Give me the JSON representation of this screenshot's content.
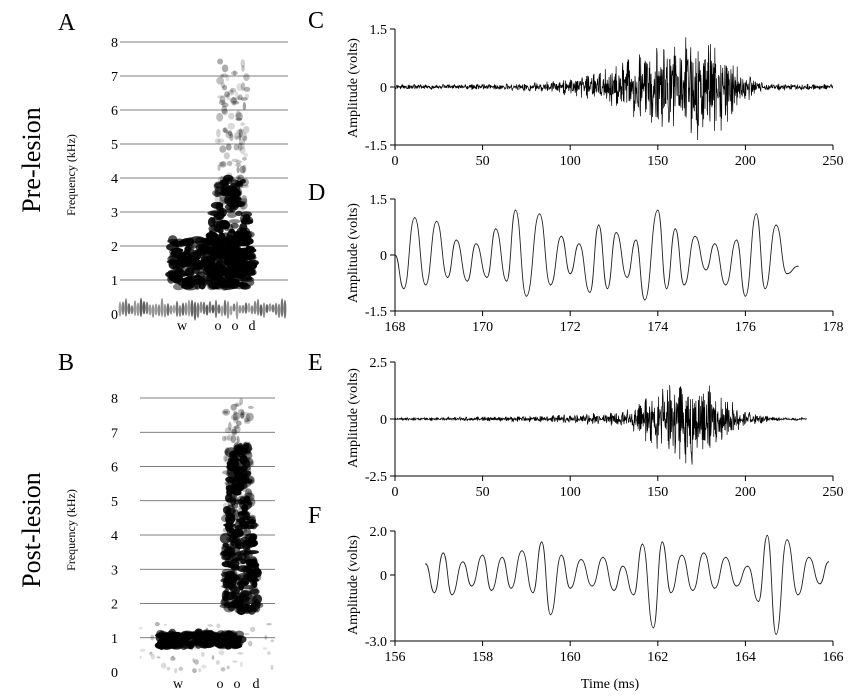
{
  "group_labels": {
    "pre": "Pre-lesion",
    "post": "Post-lesion"
  },
  "panel_letters": {
    "a": "A",
    "b": "B",
    "c": "C",
    "d": "D",
    "e": "E",
    "f": "F"
  },
  "colors": {
    "ink": "#000000",
    "gridline": "#555555",
    "waveform": "#222222"
  },
  "chart_data": [
    {
      "panel": "A",
      "type": "heatmap",
      "title": "",
      "ylabel": "Frequency (kHz)",
      "xlabel": "",
      "ylim": [
        0,
        8
      ],
      "y_ticks": [
        "0",
        "1",
        "2",
        "3",
        "4",
        "5",
        "6",
        "7",
        "8"
      ],
      "phoneme_labels": [
        "w",
        "o",
        "o",
        "d"
      ],
      "grid": "horizontal"
    },
    {
      "panel": "B",
      "type": "heatmap",
      "title": "",
      "ylabel": "Frequency (kHz)",
      "xlabel": "",
      "ylim": [
        0,
        8
      ],
      "y_ticks": [
        "0",
        "1",
        "2",
        "3",
        "4",
        "5",
        "6",
        "7",
        "8"
      ],
      "phoneme_labels": [
        "w",
        "o",
        "o",
        "d"
      ],
      "grid": "horizontal"
    },
    {
      "panel": "C",
      "type": "line",
      "ylabel": "Amplitude (volts)",
      "xlabel": "",
      "xlim": [
        0,
        250
      ],
      "ylim": [
        -1.5,
        1.5
      ],
      "x_ticks": [
        0,
        50,
        100,
        150,
        200,
        250
      ],
      "y_ticks": [
        "1.5",
        "0",
        "-1.5"
      ],
      "envelope_x": [
        0,
        60,
        90,
        110,
        125,
        140,
        150,
        160,
        170,
        180,
        190,
        200,
        210,
        250
      ],
      "envelope_y": [
        0.07,
        0.08,
        0.15,
        0.35,
        0.6,
        0.9,
        1.15,
        1.3,
        1.4,
        1.35,
        1.0,
        0.45,
        0.1,
        0.07
      ]
    },
    {
      "panel": "D",
      "type": "line",
      "ylabel": "Amplitude (volts)",
      "xlabel": "",
      "xlim": [
        168,
        178
      ],
      "ylim": [
        -1.5,
        1.5
      ],
      "x_ticks": [
        168,
        170,
        172,
        174,
        176,
        178
      ],
      "y_ticks": [
        "1.5",
        "0",
        "-1.5"
      ],
      "x": [
        168.0,
        168.2,
        168.45,
        168.7,
        168.95,
        169.2,
        169.4,
        169.65,
        169.85,
        170.1,
        170.3,
        170.55,
        170.75,
        171.0,
        171.3,
        171.55,
        171.8,
        172.0,
        172.2,
        172.45,
        172.65,
        172.85,
        173.05,
        173.3,
        173.5,
        173.7,
        174.0,
        174.2,
        174.4,
        174.6,
        174.85,
        175.1,
        175.3,
        175.55,
        175.8,
        176.0,
        176.25,
        176.45,
        176.7,
        176.95,
        177.2
      ],
      "y": [
        0.0,
        -0.9,
        1.0,
        -0.8,
        0.9,
        -0.6,
        0.4,
        -0.7,
        0.3,
        -0.6,
        0.7,
        -0.7,
        1.2,
        -1.1,
        1.1,
        -0.8,
        0.5,
        -0.5,
        0.3,
        -1.0,
        0.8,
        -0.9,
        0.6,
        -0.6,
        0.4,
        -1.2,
        1.2,
        -0.9,
        0.7,
        -0.8,
        0.5,
        -0.4,
        0.3,
        -0.8,
        0.4,
        -1.1,
        1.1,
        -0.9,
        0.8,
        -0.5,
        -0.3
      ]
    },
    {
      "panel": "E",
      "type": "line",
      "ylabel": "Amplitude (volts)",
      "xlabel": "",
      "xlim": [
        0,
        250
      ],
      "ylim": [
        -2.5,
        2.5
      ],
      "x_ticks": [
        0,
        50,
        100,
        150,
        200,
        250
      ],
      "y_ticks": [
        "2.5",
        "0",
        "-2.5"
      ],
      "envelope_x": [
        0,
        60,
        100,
        130,
        140,
        150,
        160,
        170,
        180,
        190,
        200,
        215,
        235
      ],
      "envelope_y": [
        0.05,
        0.12,
        0.2,
        0.35,
        0.8,
        1.4,
        2.2,
        2.0,
        1.5,
        0.9,
        0.35,
        0.1,
        0.05
      ]
    },
    {
      "panel": "F",
      "type": "line",
      "ylabel": "Amplitude (volts)",
      "xlabel": "Time (ms)",
      "xlim": [
        156,
        166
      ],
      "ylim": [
        -3.0,
        2.0
      ],
      "x_ticks": [
        156,
        158,
        160,
        162,
        164,
        166
      ],
      "y_ticks": [
        "2.0",
        "0",
        "-3.0"
      ],
      "x": [
        156.7,
        156.9,
        157.1,
        157.3,
        157.55,
        157.75,
        158.0,
        158.2,
        158.45,
        158.65,
        158.9,
        159.15,
        159.35,
        159.55,
        159.8,
        160.0,
        160.25,
        160.5,
        160.75,
        161.0,
        161.2,
        161.45,
        161.65,
        161.9,
        162.1,
        162.3,
        162.55,
        162.8,
        163.05,
        163.3,
        163.55,
        163.8,
        164.05,
        164.3,
        164.5,
        164.7,
        164.95,
        165.2,
        165.45,
        165.7,
        165.9
      ],
      "y": [
        0.5,
        -0.8,
        1.0,
        -0.9,
        0.6,
        -0.5,
        0.9,
        -0.7,
        0.8,
        -0.6,
        1.1,
        -0.8,
        1.5,
        -1.8,
        0.9,
        -0.6,
        0.7,
        -0.5,
        0.8,
        -0.7,
        0.4,
        -0.9,
        1.4,
        -2.4,
        1.5,
        -0.8,
        0.9,
        -0.7,
        1.0,
        -0.6,
        0.8,
        -0.5,
        0.4,
        -1.2,
        1.8,
        -2.7,
        1.6,
        -0.9,
        0.8,
        -0.4,
        0.6
      ]
    }
  ]
}
